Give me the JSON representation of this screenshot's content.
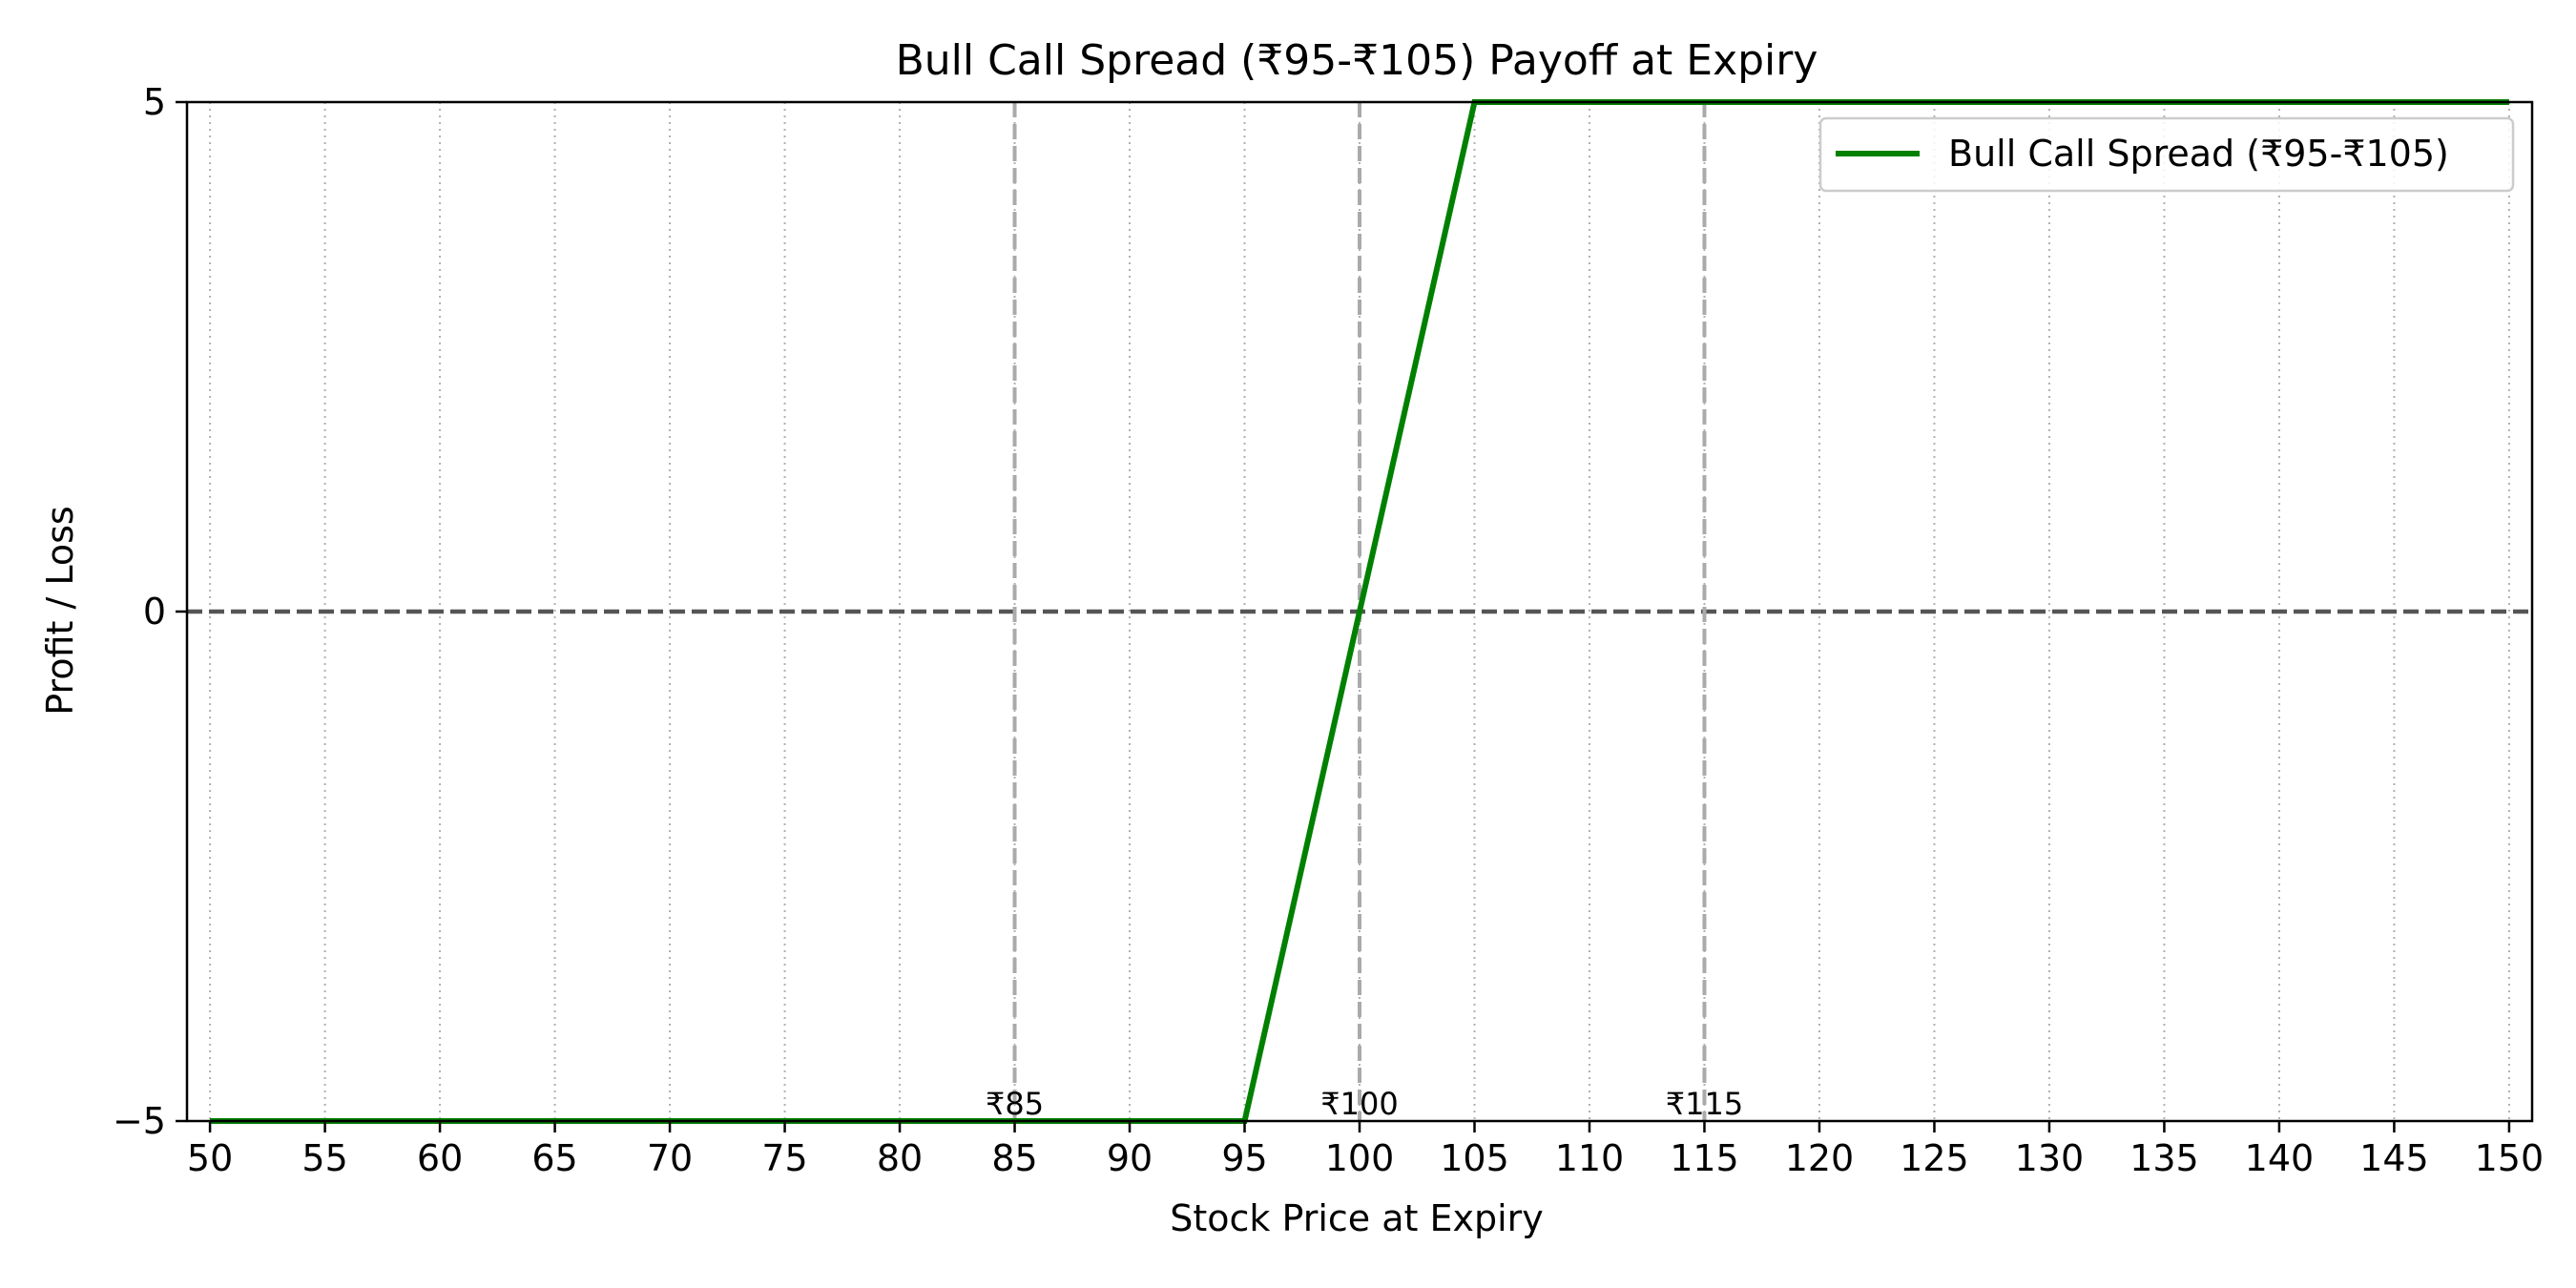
{
  "chart_data": {
    "type": "line",
    "title": "Bull Call Spread (₹95-₹105) Payoff at Expiry",
    "xlabel": "Stock Price at Expiry",
    "ylabel": "Profit / Loss",
    "xlim": [
      49,
      151
    ],
    "ylim": [
      -5,
      5
    ],
    "xticks": [
      50,
      55,
      60,
      65,
      70,
      75,
      80,
      85,
      90,
      95,
      100,
      105,
      110,
      115,
      120,
      125,
      130,
      135,
      140,
      145,
      150
    ],
    "yticks": [
      -5,
      0,
      5
    ],
    "ytick_labels": [
      "−5",
      "0",
      "5"
    ],
    "grid": "x-dotted",
    "legend_position": "top-right",
    "series": [
      {
        "name": "Bull Call Spread (₹95-₹105)",
        "color": "#008000",
        "points": [
          [
            50,
            -5
          ],
          [
            95,
            -5
          ],
          [
            105,
            5
          ],
          [
            150,
            5
          ]
        ]
      }
    ],
    "reference_lines": [
      {
        "orientation": "horizontal",
        "value": 0,
        "style": "dashed",
        "color": "#555555"
      },
      {
        "orientation": "vertical",
        "value": 85,
        "label": "₹85",
        "style": "dashed",
        "color": "#aaaaaa"
      },
      {
        "orientation": "vertical",
        "value": 100,
        "label": "₹100",
        "style": "dashed",
        "color": "#aaaaaa"
      },
      {
        "orientation": "vertical",
        "value": 115,
        "label": "₹115",
        "style": "dashed",
        "color": "#aaaaaa"
      }
    ]
  }
}
